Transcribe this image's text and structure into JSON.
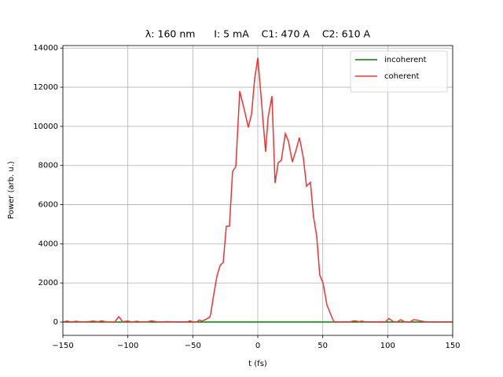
{
  "chart_data": {
    "type": "line",
    "title": "λ: 160 nm      I: 5 mA    C1: 470 A    C2: 610 A",
    "xlabel": "t (fs)",
    "ylabel": "Power (arb. u.)",
    "x": [
      -150,
      -147,
      -143,
      -140,
      -135,
      -130,
      -127,
      -123,
      -120,
      -117,
      -113,
      -110,
      -107,
      -104,
      -100,
      -97,
      -93,
      -90,
      -85,
      -82,
      -78,
      -75,
      -70,
      -65,
      -60,
      -55,
      -52,
      -50,
      -47,
      -45,
      -43,
      -40,
      -37,
      -36.3,
      -33.9,
      -31.5,
      -29,
      -26.6,
      -24.2,
      -21.8,
      -19.4,
      -16.9,
      -13.9,
      -10.3,
      -7.3,
      -4.8,
      -2.4,
      0,
      2.4,
      6,
      7.9,
      10.9,
      13.3,
      15.7,
      18.1,
      21.2,
      23.6,
      26.6,
      29.6,
      32,
      35,
      37.5,
      40.5,
      42.9,
      45.3,
      47.7,
      50.2,
      53.2,
      55.6,
      58.6,
      62,
      67,
      70,
      73,
      75,
      78,
      80,
      83,
      87,
      90,
      95,
      98,
      101,
      104,
      107,
      110,
      113,
      117,
      120,
      123,
      126,
      130,
      135,
      140,
      145,
      150
    ],
    "series": [
      {
        "name": "incoherent",
        "color": "#008000",
        "values": [
          0,
          0,
          0,
          0,
          0,
          0,
          0,
          0,
          0,
          0,
          0,
          0,
          0,
          0,
          0,
          0,
          0,
          0,
          0,
          0,
          0,
          0,
          0,
          0,
          0,
          0,
          0,
          0,
          0,
          0,
          0,
          0,
          0,
          0,
          0,
          0,
          0,
          0,
          0,
          0,
          0,
          0,
          0,
          0,
          0,
          0,
          0,
          0,
          0,
          0,
          0,
          0,
          0,
          0,
          0,
          0,
          0,
          0,
          0,
          0,
          0,
          0,
          0,
          0,
          0,
          0,
          0,
          0,
          0,
          0,
          0,
          0,
          0,
          0,
          0,
          0,
          0,
          0,
          0,
          0,
          0,
          0,
          0,
          0,
          0,
          0,
          0,
          0,
          0,
          0,
          0,
          0,
          0,
          0,
          0,
          0
        ]
      },
      {
        "name": "coherent",
        "color": "#ee3333",
        "values": [
          0,
          50,
          0,
          40,
          0,
          20,
          50,
          20,
          60,
          10,
          0,
          0,
          280,
          20,
          50,
          0,
          40,
          0,
          10,
          60,
          20,
          0,
          20,
          0,
          10,
          0,
          60,
          0,
          10,
          100,
          50,
          130,
          250,
          400,
          1400,
          2330,
          2890,
          3050,
          4900,
          4900,
          7700,
          7950,
          11800,
          10830,
          9950,
          10630,
          12430,
          13500,
          11630,
          8700,
          10430,
          11550,
          7100,
          8140,
          8260,
          9630,
          9230,
          8180,
          8820,
          9430,
          8420,
          6940,
          7140,
          5380,
          4410,
          2400,
          2000,
          880,
          480,
          0,
          0,
          10,
          0,
          50,
          60,
          20,
          50,
          0,
          10,
          0,
          10,
          0,
          180,
          30,
          0,
          120,
          10,
          0,
          120,
          90,
          50,
          0,
          10,
          0,
          10,
          0
        ]
      }
    ],
    "xlim": [
      -150,
      150
    ],
    "xticks": [
      {
        "value": -150,
        "label": "−150"
      },
      {
        "value": -100,
        "label": "−100"
      },
      {
        "value": -50,
        "label": "−50"
      },
      0,
      50,
      100,
      150
    ],
    "ylim": [
      -680,
      14130
    ],
    "yticks": [
      0,
      2000,
      4000,
      6000,
      8000,
      10000,
      12000,
      14000
    ],
    "grid": true,
    "legend": "upper right"
  }
}
